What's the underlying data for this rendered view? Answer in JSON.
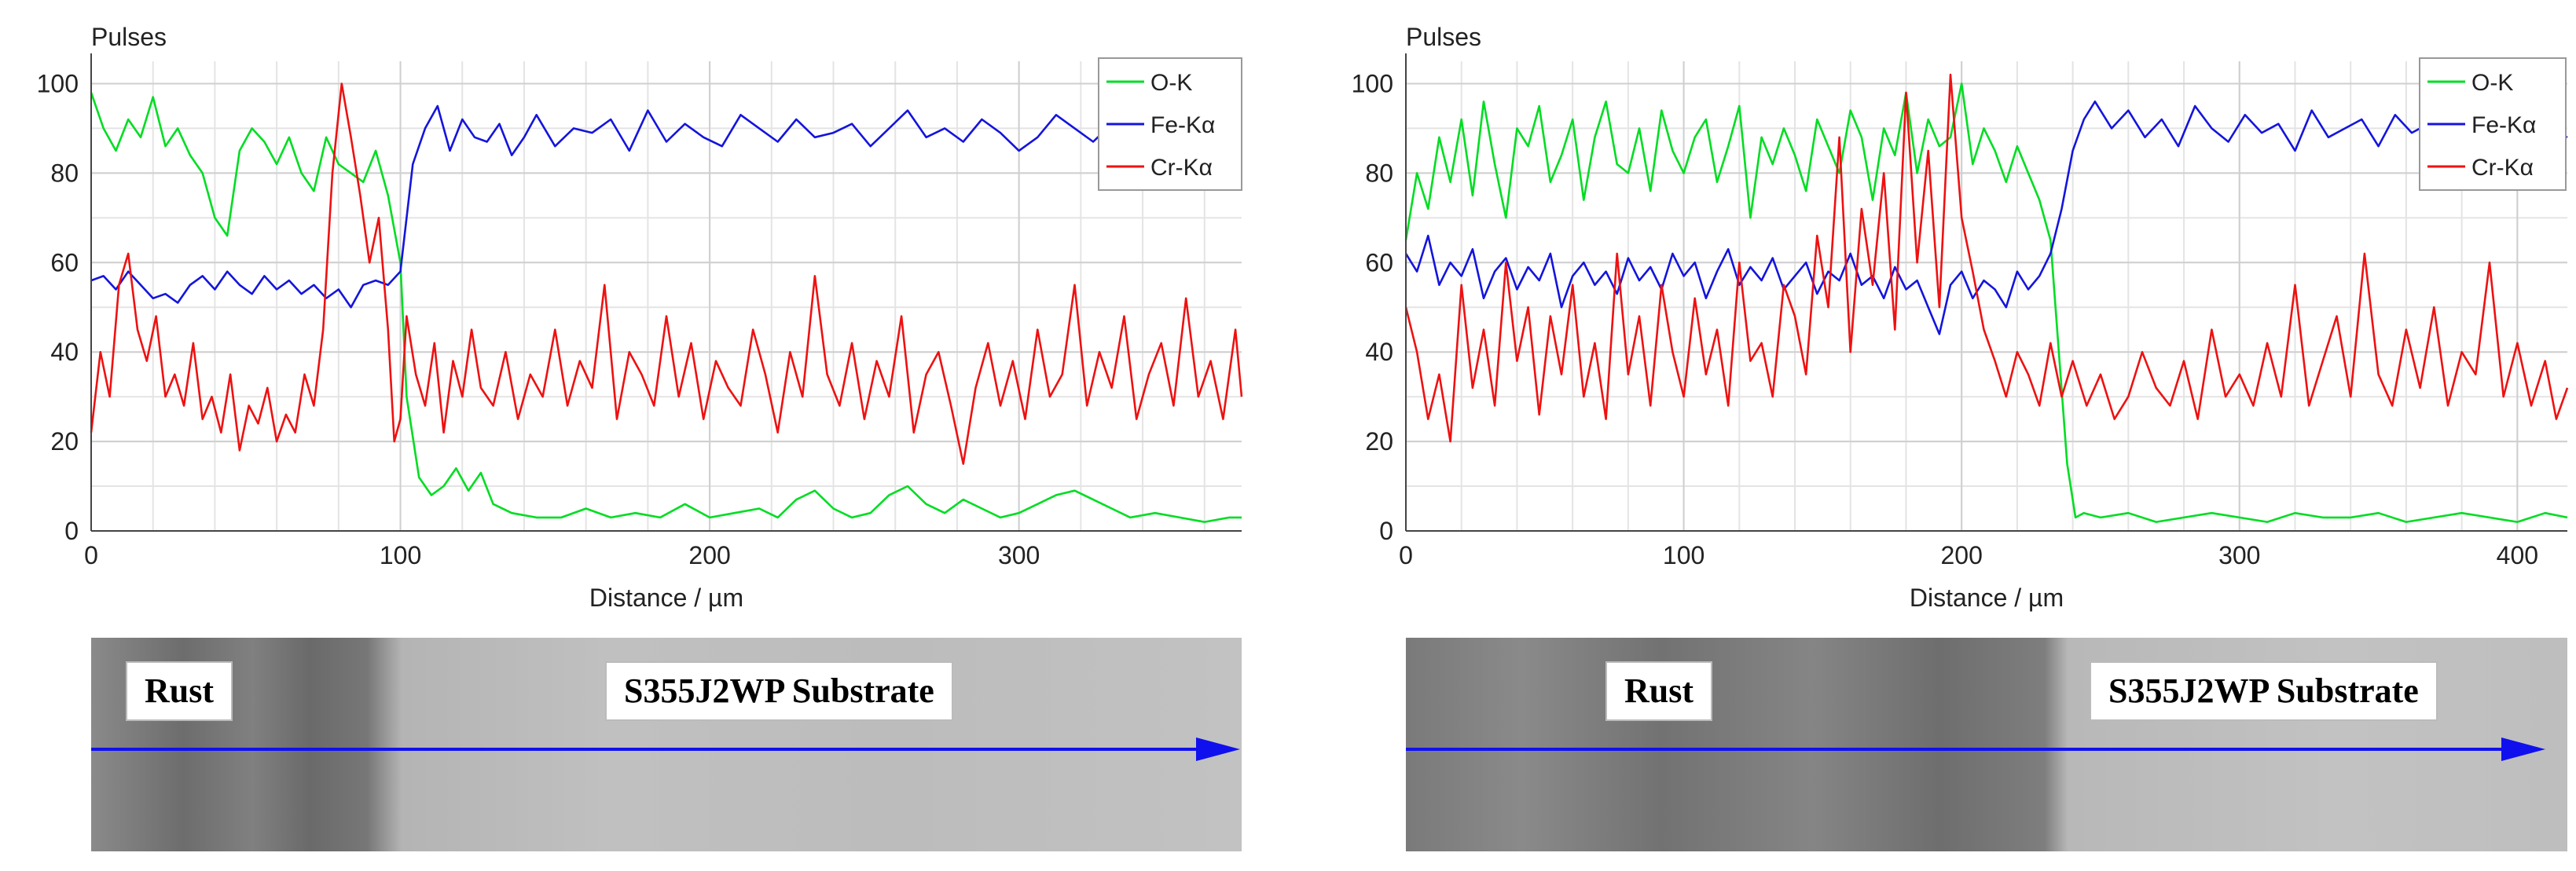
{
  "chart_data": [
    {
      "type": "line",
      "ylabel": "Pulses",
      "xlabel": "Distance / µm",
      "xlim": [
        0,
        372
      ],
      "ylim": [
        0,
        105
      ],
      "xticks": [
        0,
        100,
        200,
        300
      ],
      "yticks": [
        0,
        20,
        40,
        60,
        80,
        100
      ],
      "grid": true,
      "legend_position": "top-right",
      "series": [
        {
          "name": "O-K",
          "color": "#00dd22",
          "x": [
            0,
            4,
            8,
            12,
            16,
            20,
            24,
            28,
            32,
            36,
            40,
            44,
            48,
            52,
            56,
            60,
            64,
            68,
            72,
            76,
            80,
            84,
            88,
            92,
            96,
            100,
            102,
            106,
            110,
            114,
            118,
            122,
            126,
            130,
            136,
            144,
            152,
            160,
            168,
            176,
            184,
            192,
            200,
            208,
            216,
            222,
            228,
            234,
            240,
            246,
            252,
            258,
            264,
            270,
            276,
            282,
            288,
            294,
            300,
            306,
            312,
            318,
            324,
            330,
            336,
            344,
            352,
            360,
            368,
            372
          ],
          "y": [
            98,
            90,
            85,
            92,
            88,
            97,
            86,
            90,
            84,
            80,
            70,
            66,
            85,
            90,
            87,
            82,
            88,
            80,
            76,
            88,
            82,
            80,
            78,
            85,
            75,
            60,
            30,
            12,
            8,
            10,
            14,
            9,
            13,
            6,
            4,
            3,
            3,
            5,
            3,
            4,
            3,
            6,
            3,
            4,
            5,
            3,
            7,
            9,
            5,
            3,
            4,
            8,
            10,
            6,
            4,
            7,
            5,
            3,
            4,
            6,
            8,
            9,
            7,
            5,
            3,
            4,
            3,
            2,
            3,
            3
          ]
        },
        {
          "name": "Fe-Kα",
          "color": "#1414dd",
          "x": [
            0,
            4,
            8,
            12,
            16,
            20,
            24,
            28,
            32,
            36,
            40,
            44,
            48,
            52,
            56,
            60,
            64,
            68,
            72,
            76,
            80,
            84,
            88,
            92,
            96,
            100,
            104,
            108,
            112,
            116,
            120,
            124,
            128,
            132,
            136,
            140,
            144,
            150,
            156,
            162,
            168,
            174,
            180,
            186,
            192,
            198,
            204,
            210,
            216,
            222,
            228,
            234,
            240,
            246,
            252,
            258,
            264,
            270,
            276,
            282,
            288,
            294,
            300,
            306,
            312,
            318,
            324,
            330,
            336,
            342,
            348,
            354,
            360,
            366,
            372
          ],
          "y": [
            56,
            57,
            54,
            58,
            55,
            52,
            53,
            51,
            55,
            57,
            54,
            58,
            55,
            53,
            57,
            54,
            56,
            53,
            55,
            52,
            54,
            50,
            55,
            56,
            55,
            58,
            82,
            90,
            95,
            85,
            92,
            88,
            87,
            91,
            84,
            88,
            93,
            86,
            90,
            89,
            92,
            85,
            94,
            87,
            91,
            88,
            86,
            93,
            90,
            87,
            92,
            88,
            89,
            91,
            86,
            90,
            94,
            88,
            90,
            87,
            92,
            89,
            85,
            88,
            93,
            90,
            87,
            91,
            84,
            89,
            88,
            92,
            86,
            90,
            88
          ]
        },
        {
          "name": "Cr-Kα",
          "color": "#ee1111",
          "x": [
            0,
            3,
            6,
            9,
            12,
            15,
            18,
            21,
            24,
            27,
            30,
            33,
            36,
            39,
            42,
            45,
            48,
            51,
            54,
            57,
            60,
            63,
            66,
            69,
            72,
            75,
            78,
            81,
            84,
            87,
            90,
            93,
            96,
            98,
            100,
            102,
            105,
            108,
            111,
            114,
            117,
            120,
            123,
            126,
            130,
            134,
            138,
            142,
            146,
            150,
            154,
            158,
            162,
            166,
            170,
            174,
            178,
            182,
            186,
            190,
            194,
            198,
            202,
            206,
            210,
            214,
            218,
            222,
            226,
            230,
            234,
            238,
            242,
            246,
            250,
            254,
            258,
            262,
            266,
            270,
            274,
            278,
            282,
            286,
            290,
            294,
            298,
            302,
            306,
            310,
            314,
            318,
            322,
            326,
            330,
            334,
            338,
            342,
            346,
            350,
            354,
            358,
            362,
            366,
            370,
            372
          ],
          "y": [
            22,
            40,
            30,
            55,
            62,
            45,
            38,
            48,
            30,
            35,
            28,
            42,
            25,
            30,
            22,
            35,
            18,
            28,
            24,
            32,
            20,
            26,
            22,
            35,
            28,
            45,
            80,
            100,
            88,
            75,
            60,
            70,
            45,
            20,
            25,
            48,
            35,
            28,
            42,
            22,
            38,
            30,
            45,
            32,
            28,
            40,
            25,
            35,
            30,
            45,
            28,
            38,
            32,
            55,
            25,
            40,
            35,
            28,
            48,
            30,
            42,
            25,
            38,
            32,
            28,
            45,
            35,
            22,
            40,
            30,
            57,
            35,
            28,
            42,
            25,
            38,
            30,
            48,
            22,
            35,
            40,
            28,
            15,
            32,
            42,
            28,
            38,
            25,
            45,
            30,
            35,
            55,
            28,
            40,
            32,
            48,
            25,
            35,
            42,
            28,
            52,
            30,
            38,
            25,
            45,
            30
          ]
        }
      ]
    },
    {
      "type": "line",
      "ylabel": "Pulses",
      "xlabel": "Distance / µm",
      "xlim": [
        0,
        418
      ],
      "ylim": [
        0,
        105
      ],
      "xticks": [
        0,
        100,
        200,
        300,
        400
      ],
      "yticks": [
        0,
        20,
        40,
        60,
        80,
        100
      ],
      "grid": true,
      "legend_position": "top-right",
      "series": [
        {
          "name": "O-K",
          "color": "#00dd22",
          "x": [
            0,
            4,
            8,
            12,
            16,
            20,
            24,
            28,
            32,
            36,
            40,
            44,
            48,
            52,
            56,
            60,
            64,
            68,
            72,
            76,
            80,
            84,
            88,
            92,
            96,
            100,
            104,
            108,
            112,
            116,
            120,
            124,
            128,
            132,
            136,
            140,
            144,
            148,
            152,
            156,
            160,
            164,
            168,
            172,
            176,
            180,
            184,
            188,
            192,
            196,
            200,
            204,
            208,
            212,
            216,
            220,
            224,
            228,
            232,
            235,
            238,
            241,
            244,
            250,
            260,
            270,
            280,
            290,
            300,
            310,
            320,
            330,
            340,
            350,
            360,
            370,
            380,
            390,
            400,
            410,
            418
          ],
          "y": [
            65,
            80,
            72,
            88,
            78,
            92,
            75,
            96,
            82,
            70,
            90,
            86,
            95,
            78,
            84,
            92,
            74,
            88,
            96,
            82,
            80,
            90,
            76,
            94,
            85,
            80,
            88,
            92,
            78,
            86,
            95,
            70,
            88,
            82,
            90,
            84,
            76,
            92,
            86,
            80,
            94,
            88,
            74,
            90,
            84,
            98,
            80,
            92,
            86,
            88,
            100,
            82,
            90,
            85,
            78,
            86,
            80,
            74,
            65,
            40,
            15,
            3,
            4,
            3,
            4,
            2,
            3,
            4,
            3,
            2,
            4,
            3,
            3,
            4,
            2,
            3,
            4,
            3,
            2,
            4,
            3
          ]
        },
        {
          "name": "Fe-Kα",
          "color": "#1414dd",
          "x": [
            0,
            4,
            8,
            12,
            16,
            20,
            24,
            28,
            32,
            36,
            40,
            44,
            48,
            52,
            56,
            60,
            64,
            68,
            72,
            76,
            80,
            84,
            88,
            92,
            96,
            100,
            104,
            108,
            112,
            116,
            120,
            124,
            128,
            132,
            136,
            140,
            144,
            148,
            152,
            156,
            160,
            164,
            168,
            172,
            176,
            180,
            184,
            188,
            192,
            196,
            200,
            204,
            208,
            212,
            216,
            220,
            224,
            228,
            232,
            236,
            240,
            244,
            248,
            254,
            260,
            266,
            272,
            278,
            284,
            290,
            296,
            302,
            308,
            314,
            320,
            326,
            332,
            338,
            344,
            350,
            356,
            362,
            368,
            374,
            380,
            386,
            392,
            398,
            404,
            410,
            418
          ],
          "y": [
            62,
            58,
            66,
            55,
            60,
            57,
            63,
            52,
            58,
            61,
            54,
            59,
            56,
            62,
            50,
            57,
            60,
            55,
            58,
            53,
            61,
            56,
            59,
            54,
            62,
            57,
            60,
            52,
            58,
            63,
            55,
            59,
            56,
            61,
            54,
            57,
            60,
            53,
            58,
            56,
            62,
            55,
            57,
            52,
            59,
            54,
            56,
            50,
            44,
            55,
            58,
            52,
            56,
            54,
            50,
            58,
            54,
            57,
            62,
            72,
            85,
            92,
            96,
            90,
            94,
            88,
            92,
            86,
            95,
            90,
            87,
            93,
            89,
            91,
            85,
            94,
            88,
            90,
            92,
            86,
            93,
            89,
            91,
            87,
            95,
            90,
            88,
            92,
            86,
            90,
            88
          ]
        },
        {
          "name": "Cr-Kα",
          "color": "#ee1111",
          "x": [
            0,
            4,
            8,
            12,
            16,
            20,
            24,
            28,
            32,
            36,
            40,
            44,
            48,
            52,
            56,
            60,
            64,
            68,
            72,
            76,
            80,
            84,
            88,
            92,
            96,
            100,
            104,
            108,
            112,
            116,
            120,
            124,
            128,
            132,
            136,
            140,
            144,
            148,
            152,
            156,
            160,
            164,
            168,
            172,
            176,
            180,
            184,
            188,
            192,
            196,
            200,
            204,
            208,
            212,
            216,
            220,
            224,
            228,
            232,
            236,
            240,
            245,
            250,
            255,
            260,
            265,
            270,
            275,
            280,
            285,
            290,
            295,
            300,
            305,
            310,
            315,
            320,
            325,
            330,
            335,
            340,
            345,
            350,
            355,
            360,
            365,
            370,
            375,
            380,
            385,
            390,
            395,
            400,
            405,
            410,
            414,
            418
          ],
          "y": [
            50,
            40,
            25,
            35,
            20,
            55,
            32,
            45,
            28,
            60,
            38,
            50,
            26,
            48,
            35,
            55,
            30,
            42,
            25,
            62,
            35,
            48,
            28,
            55,
            40,
            30,
            52,
            35,
            45,
            28,
            60,
            38,
            42,
            30,
            55,
            48,
            35,
            66,
            50,
            88,
            40,
            72,
            55,
            80,
            45,
            98,
            60,
            85,
            50,
            102,
            70,
            58,
            45,
            38,
            30,
            40,
            35,
            28,
            42,
            30,
            38,
            28,
            35,
            25,
            30,
            40,
            32,
            28,
            38,
            25,
            45,
            30,
            35,
            28,
            42,
            30,
            55,
            28,
            38,
            48,
            30,
            62,
            35,
            28,
            45,
            32,
            50,
            28,
            40,
            35,
            60,
            30,
            42,
            28,
            38,
            25,
            32
          ]
        }
      ]
    }
  ],
  "micrographs": [
    {
      "left_label": "Rust",
      "right_label": "S355J2WP Substrate"
    },
    {
      "left_label": "Rust",
      "right_label": "S355J2WP Substrate"
    }
  ]
}
